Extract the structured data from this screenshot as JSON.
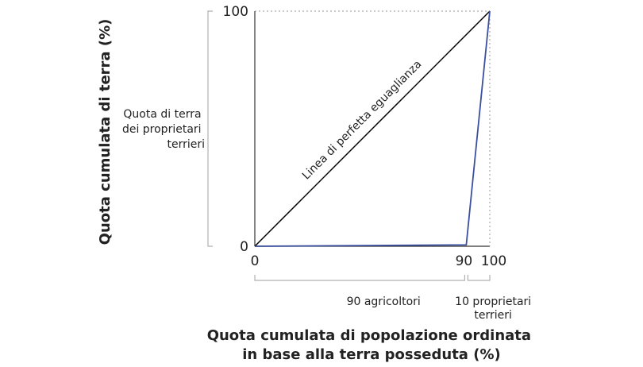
{
  "chart_data": {
    "type": "line",
    "xlabel_lines": [
      "Quota cumulata di popolazione ordinata",
      "in base alla terra posseduta (%)"
    ],
    "ylabel": "Quota cumulata di terra (%)",
    "xlim": [
      0,
      100
    ],
    "ylim": [
      0,
      100
    ],
    "x_ticks": [
      {
        "value": 0,
        "label": "0"
      },
      {
        "value": 90,
        "label": "90"
      },
      {
        "value": 100,
        "label": "100"
      }
    ],
    "y_ticks": [
      {
        "value": 0,
        "label": "0"
      },
      {
        "value": 100,
        "label": "100"
      }
    ],
    "equality_line": {
      "label": "Linea di perfetta eguaglianza",
      "points": [
        [
          0,
          0
        ],
        [
          100,
          100
        ]
      ],
      "color": "#000000"
    },
    "lorenz_curve": {
      "points": [
        [
          0,
          0
        ],
        [
          90,
          0.6
        ],
        [
          100,
          100
        ]
      ],
      "color": "#3a4fa0"
    },
    "y_bracket_label_lines": [
      "Quota di terra",
      "dei proprietari",
      "terrieri"
    ],
    "x_brackets": [
      {
        "from": 0,
        "to": 90,
        "label_lines": [
          "90 agricoltori"
        ]
      },
      {
        "from": 90,
        "to": 100,
        "label_lines": [
          "10 proprietari",
          "terrieri"
        ]
      }
    ],
    "grid": false
  }
}
